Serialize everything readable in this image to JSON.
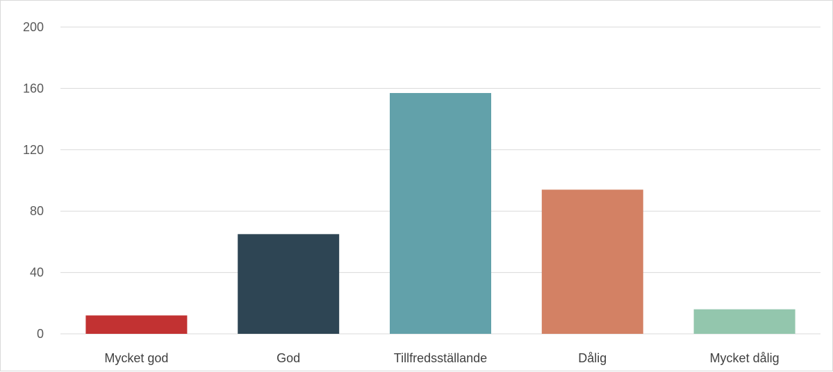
{
  "chart_data": {
    "type": "bar",
    "title": "",
    "xlabel": "",
    "ylabel": "",
    "categories": [
      "Mycket god",
      "God",
      "Tillfredsställande",
      "Dålig",
      "Mycket dålig"
    ],
    "values": [
      12,
      65,
      157,
      94,
      16
    ],
    "colors": [
      "#c23232",
      "#2e4554",
      "#62a1aa",
      "#d38164",
      "#93c6ad"
    ],
    "ylim": [
      0,
      200
    ],
    "yticks": [
      0,
      40,
      80,
      120,
      160,
      200
    ],
    "grid": true,
    "legend": "none",
    "gridline_color": "#d9d9d9"
  }
}
